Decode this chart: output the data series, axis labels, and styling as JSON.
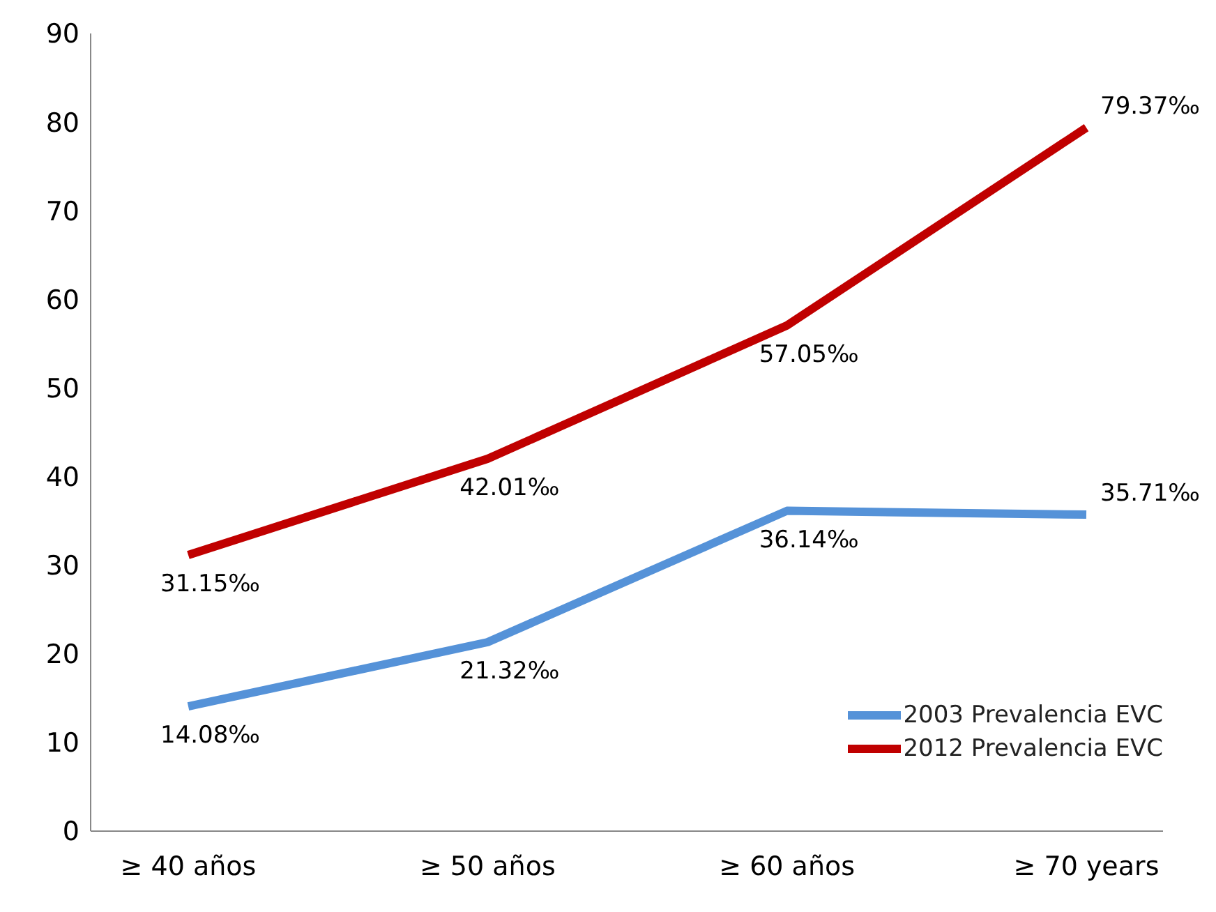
{
  "chart_data": {
    "type": "line",
    "categories": [
      "≥ 40 años",
      "≥ 50 años",
      "≥ 60 años",
      "≥ 70 years"
    ],
    "series": [
      {
        "name": "2003 Prevalencia EVC",
        "color": "#5592d8",
        "values": [
          14.08,
          21.32,
          36.14,
          35.71
        ],
        "value_labels": [
          "14.08‰",
          "21.32‰",
          "36.14‰",
          "35.71‰"
        ]
      },
      {
        "name": "2012 Prevalencia EVC",
        "color": "#c00000",
        "values": [
          31.15,
          42.01,
          57.05,
          79.37
        ],
        "value_labels": [
          "31.15‰",
          "42.01‰",
          "57.05‰",
          "79.37‰"
        ]
      }
    ],
    "ylim": [
      0,
      90
    ],
    "yticks": [
      0,
      10,
      20,
      30,
      40,
      50,
      60,
      70,
      80,
      90
    ],
    "grid": false,
    "legend": "bottom right",
    "marker": "none",
    "line_style": "solid"
  }
}
